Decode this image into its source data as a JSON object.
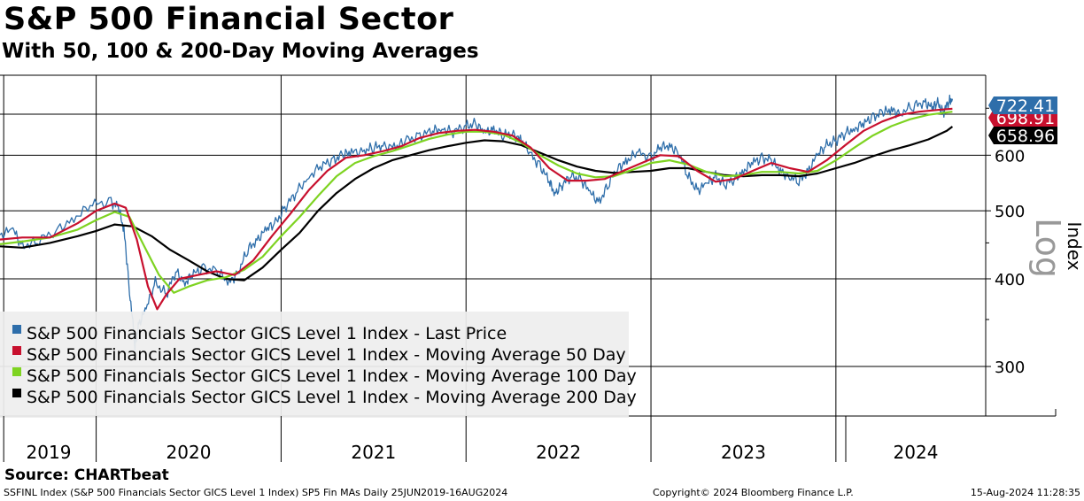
{
  "header": {
    "title": "S&P 500 Financial Sector",
    "subtitle": "With 50, 100 & 200-Day Moving Averages"
  },
  "footer": {
    "source": "Source: CHARTbeat",
    "left": "SSFINL Index (S&P 500 Financials Sector GICS Level 1 Index) SP5 Fin MAs  Daily 25JUN2019-16AUG2024",
    "middle": "Copyright© 2024 Bloomberg Finance L.P.",
    "right": "15-Aug-2024 11:28:35"
  },
  "colors": {
    "last_price": "#2e6eaa",
    "ma50": "#c8102e",
    "ma100": "#7ed321",
    "ma200": "#000000",
    "grid": "#000000",
    "legend_bg": "#eeeeee"
  },
  "chart_data": {
    "type": "line",
    "scale": "log",
    "x_range": [
      2019.48,
      2024.63
    ],
    "ylim": [
      255,
      780
    ],
    "y_ticks": [
      300,
      400,
      500,
      600
    ],
    "x_gridlines": [
      2019.5,
      2020,
      2021,
      2022,
      2023,
      2024
    ],
    "x_labels": [
      {
        "label": "2019",
        "at": 2019.75
      },
      {
        "label": "2020",
        "at": 2020.5
      },
      {
        "label": "2021",
        "at": 2021.5
      },
      {
        "label": "2022",
        "at": 2022.5
      },
      {
        "label": "2023",
        "at": 2023.5
      },
      {
        "label": "2024",
        "at": 2024.36
      }
    ],
    "ylabel": "Index",
    "scale_label": "Log",
    "legend": [
      "S&P 500 Financials Sector GICS Level 1 Index - Last Price",
      "S&P 500 Financials Sector GICS Level 1 Index - Moving Average 50 Day",
      "S&P 500 Financials Sector GICS Level 1 Index - Moving Average 100 Day",
      "S&P 500 Financials Sector GICS Level 1 Index - Moving Average 200 Day"
    ],
    "last_values": [
      {
        "label": "722.41",
        "value": 722.41,
        "series": "last_price"
      },
      {
        "label": "698.91",
        "value": 698.91,
        "series": "ma50"
      },
      {
        "label": "658.96",
        "value": 658.96,
        "series": "ma200"
      }
    ],
    "series": [
      {
        "name": "Last Price",
        "key": "last_price",
        "points": [
          [
            2019.48,
            462
          ],
          [
            2019.55,
            470
          ],
          [
            2019.6,
            445
          ],
          [
            2019.68,
            452
          ],
          [
            2019.78,
            468
          ],
          [
            2019.88,
            488
          ],
          [
            2019.98,
            510
          ],
          [
            2020.08,
            515
          ],
          [
            2020.12,
            505
          ],
          [
            2020.15,
            470
          ],
          [
            2020.18,
            385
          ],
          [
            2020.21,
            320
          ],
          [
            2020.23,
            345
          ],
          [
            2020.27,
            362
          ],
          [
            2020.32,
            395
          ],
          [
            2020.38,
            380
          ],
          [
            2020.43,
            410
          ],
          [
            2020.48,
            395
          ],
          [
            2020.52,
            405
          ],
          [
            2020.58,
            415
          ],
          [
            2020.65,
            410
          ],
          [
            2020.72,
            395
          ],
          [
            2020.77,
            410
          ],
          [
            2020.82,
            440
          ],
          [
            2020.87,
            455
          ],
          [
            2020.92,
            470
          ],
          [
            2020.97,
            480
          ],
          [
            2021.02,
            505
          ],
          [
            2021.08,
            530
          ],
          [
            2021.15,
            560
          ],
          [
            2021.22,
            580
          ],
          [
            2021.28,
            590
          ],
          [
            2021.33,
            600
          ],
          [
            2021.38,
            605
          ],
          [
            2021.45,
            610
          ],
          [
            2021.5,
            615
          ],
          [
            2021.55,
            620
          ],
          [
            2021.62,
            615
          ],
          [
            2021.68,
            630
          ],
          [
            2021.75,
            640
          ],
          [
            2021.82,
            650
          ],
          [
            2021.87,
            655
          ],
          [
            2021.93,
            648
          ],
          [
            2022.0,
            660
          ],
          [
            2022.05,
            665
          ],
          [
            2022.1,
            645
          ],
          [
            2022.15,
            655
          ],
          [
            2022.2,
            640
          ],
          [
            2022.25,
            645
          ],
          [
            2022.3,
            630
          ],
          [
            2022.35,
            600
          ],
          [
            2022.4,
            580
          ],
          [
            2022.45,
            550
          ],
          [
            2022.48,
            530
          ],
          [
            2022.52,
            545
          ],
          [
            2022.57,
            560
          ],
          [
            2022.62,
            555
          ],
          [
            2022.67,
            530
          ],
          [
            2022.72,
            515
          ],
          [
            2022.77,
            545
          ],
          [
            2022.82,
            575
          ],
          [
            2022.87,
            590
          ],
          [
            2022.93,
            605
          ],
          [
            2023.0,
            595
          ],
          [
            2023.05,
            615
          ],
          [
            2023.1,
            620
          ],
          [
            2023.15,
            605
          ],
          [
            2023.2,
            560
          ],
          [
            2023.25,
            535
          ],
          [
            2023.3,
            545
          ],
          [
            2023.35,
            560
          ],
          [
            2023.4,
            545
          ],
          [
            2023.45,
            555
          ],
          [
            2023.5,
            570
          ],
          [
            2023.55,
            585
          ],
          [
            2023.6,
            595
          ],
          [
            2023.65,
            590
          ],
          [
            2023.7,
            570
          ],
          [
            2023.75,
            560
          ],
          [
            2023.8,
            550
          ],
          [
            2023.85,
            570
          ],
          [
            2023.9,
            600
          ],
          [
            2023.95,
            620
          ],
          [
            2024.0,
            630
          ],
          [
            2024.05,
            645
          ],
          [
            2024.1,
            655
          ],
          [
            2024.15,
            665
          ],
          [
            2024.2,
            680
          ],
          [
            2024.25,
            690
          ],
          [
            2024.3,
            695
          ],
          [
            2024.35,
            690
          ],
          [
            2024.42,
            705
          ],
          [
            2024.48,
            715
          ],
          [
            2024.52,
            700
          ],
          [
            2024.55,
            712
          ],
          [
            2024.58,
            690
          ],
          [
            2024.61,
            715
          ],
          [
            2024.63,
            722
          ]
        ]
      },
      {
        "name": "Moving Average 50 Day",
        "key": "ma50",
        "points": [
          [
            2019.48,
            455
          ],
          [
            2019.6,
            458
          ],
          [
            2019.75,
            458
          ],
          [
            2019.9,
            480
          ],
          [
            2020.0,
            500
          ],
          [
            2020.1,
            512
          ],
          [
            2020.16,
            505
          ],
          [
            2020.22,
            455
          ],
          [
            2020.28,
            390
          ],
          [
            2020.33,
            362
          ],
          [
            2020.38,
            380
          ],
          [
            2020.45,
            400
          ],
          [
            2020.55,
            405
          ],
          [
            2020.65,
            410
          ],
          [
            2020.75,
            405
          ],
          [
            2020.85,
            425
          ],
          [
            2020.95,
            460
          ],
          [
            2021.05,
            495
          ],
          [
            2021.15,
            535
          ],
          [
            2021.25,
            570
          ],
          [
            2021.35,
            595
          ],
          [
            2021.45,
            600
          ],
          [
            2021.55,
            608
          ],
          [
            2021.65,
            618
          ],
          [
            2021.75,
            635
          ],
          [
            2021.85,
            645
          ],
          [
            2021.95,
            650
          ],
          [
            2022.05,
            652
          ],
          [
            2022.15,
            648
          ],
          [
            2022.25,
            640
          ],
          [
            2022.35,
            615
          ],
          [
            2022.45,
            575
          ],
          [
            2022.55,
            552
          ],
          [
            2022.65,
            552
          ],
          [
            2022.75,
            555
          ],
          [
            2022.85,
            570
          ],
          [
            2022.95,
            585
          ],
          [
            2023.05,
            600
          ],
          [
            2023.15,
            598
          ],
          [
            2023.25,
            570
          ],
          [
            2023.35,
            550
          ],
          [
            2023.45,
            555
          ],
          [
            2023.55,
            570
          ],
          [
            2023.65,
            585
          ],
          [
            2023.75,
            575
          ],
          [
            2023.85,
            568
          ],
          [
            2023.95,
            590
          ],
          [
            2024.05,
            620
          ],
          [
            2024.15,
            650
          ],
          [
            2024.25,
            670
          ],
          [
            2024.35,
            685
          ],
          [
            2024.45,
            692
          ],
          [
            2024.55,
            696
          ],
          [
            2024.63,
            699
          ]
        ]
      },
      {
        "name": "Moving Average 100 Day",
        "key": "ma100",
        "points": [
          [
            2019.48,
            448
          ],
          [
            2019.6,
            452
          ],
          [
            2019.75,
            458
          ],
          [
            2019.9,
            470
          ],
          [
            2020.0,
            485
          ],
          [
            2020.1,
            498
          ],
          [
            2020.18,
            490
          ],
          [
            2020.26,
            445
          ],
          [
            2020.34,
            405
          ],
          [
            2020.42,
            382
          ],
          [
            2020.5,
            390
          ],
          [
            2020.6,
            398
          ],
          [
            2020.7,
            402
          ],
          [
            2020.8,
            412
          ],
          [
            2020.9,
            430
          ],
          [
            2021.0,
            460
          ],
          [
            2021.1,
            490
          ],
          [
            2021.2,
            525
          ],
          [
            2021.3,
            560
          ],
          [
            2021.4,
            585
          ],
          [
            2021.5,
            598
          ],
          [
            2021.6,
            608
          ],
          [
            2021.7,
            620
          ],
          [
            2021.8,
            633
          ],
          [
            2021.9,
            642
          ],
          [
            2022.0,
            648
          ],
          [
            2022.1,
            648
          ],
          [
            2022.2,
            642
          ],
          [
            2022.3,
            625
          ],
          [
            2022.4,
            600
          ],
          [
            2022.5,
            580
          ],
          [
            2022.6,
            565
          ],
          [
            2022.7,
            558
          ],
          [
            2022.8,
            560
          ],
          [
            2022.9,
            572
          ],
          [
            2023.0,
            585
          ],
          [
            2023.1,
            590
          ],
          [
            2023.2,
            582
          ],
          [
            2023.3,
            568
          ],
          [
            2023.4,
            560
          ],
          [
            2023.5,
            562
          ],
          [
            2023.6,
            568
          ],
          [
            2023.7,
            568
          ],
          [
            2023.8,
            565
          ],
          [
            2023.9,
            570
          ],
          [
            2024.0,
            590
          ],
          [
            2024.1,
            615
          ],
          [
            2024.2,
            640
          ],
          [
            2024.3,
            660
          ],
          [
            2024.4,
            675
          ],
          [
            2024.5,
            685
          ],
          [
            2024.63,
            692
          ]
        ]
      },
      {
        "name": "Moving Average 200 Day",
        "key": "ma200",
        "points": [
          [
            2019.48,
            445
          ],
          [
            2019.6,
            443
          ],
          [
            2019.75,
            450
          ],
          [
            2019.9,
            460
          ],
          [
            2020.0,
            468
          ],
          [
            2020.1,
            478
          ],
          [
            2020.2,
            475
          ],
          [
            2020.3,
            460
          ],
          [
            2020.4,
            440
          ],
          [
            2020.5,
            425
          ],
          [
            2020.6,
            410
          ],
          [
            2020.7,
            400
          ],
          [
            2020.8,
            398
          ],
          [
            2020.9,
            415
          ],
          [
            2021.0,
            440
          ],
          [
            2021.1,
            465
          ],
          [
            2021.2,
            500
          ],
          [
            2021.3,
            530
          ],
          [
            2021.4,
            555
          ],
          [
            2021.5,
            575
          ],
          [
            2021.6,
            590
          ],
          [
            2021.7,
            600
          ],
          [
            2021.8,
            610
          ],
          [
            2021.9,
            618
          ],
          [
            2022.0,
            625
          ],
          [
            2022.1,
            630
          ],
          [
            2022.2,
            628
          ],
          [
            2022.3,
            620
          ],
          [
            2022.4,
            605
          ],
          [
            2022.5,
            590
          ],
          [
            2022.6,
            578
          ],
          [
            2022.7,
            570
          ],
          [
            2022.8,
            566
          ],
          [
            2022.9,
            568
          ],
          [
            2023.0,
            570
          ],
          [
            2023.1,
            575
          ],
          [
            2023.2,
            575
          ],
          [
            2023.3,
            568
          ],
          [
            2023.4,
            562
          ],
          [
            2023.5,
            560
          ],
          [
            2023.6,
            562
          ],
          [
            2023.7,
            562
          ],
          [
            2023.8,
            560
          ],
          [
            2023.9,
            565
          ],
          [
            2024.0,
            575
          ],
          [
            2024.1,
            585
          ],
          [
            2024.2,
            598
          ],
          [
            2024.3,
            610
          ],
          [
            2024.4,
            620
          ],
          [
            2024.5,
            632
          ],
          [
            2024.6,
            650
          ],
          [
            2024.63,
            659
          ]
        ]
      }
    ]
  }
}
